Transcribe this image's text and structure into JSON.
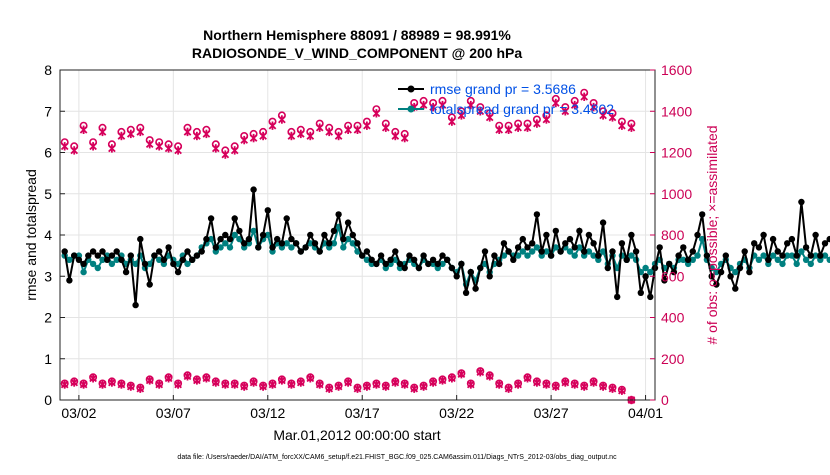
{
  "chart_data": {
    "type": "line",
    "title_line1": "Northern Hemisphere 88091 / 88989 = 98.991%",
    "title_line2": "RADIOSONDE_V_WIND_COMPONENT @ 200 hPa",
    "xlabel": "Mar.01,2012 00:00:00 start",
    "ylabel_left": "rmse and totalspread",
    "ylabel_right": "# of obs: o=possible; ×=assimilated",
    "footer": "data file: /Users/raeder/DAI/ATM_forcXX/CAM6_setup/f.e21.FHIST_BGC.f09_025.CAM6assim.011/Diags_NTrS_2012-03/obs_diag_output.nc",
    "x_range_days": [
      0,
      31.5
    ],
    "ylim_left": [
      0,
      8
    ],
    "ylim_right": [
      0,
      1600
    ],
    "x_ticks": [
      {
        "day": 1,
        "label": "03/02"
      },
      {
        "day": 6,
        "label": "03/07"
      },
      {
        "day": 11,
        "label": "03/12"
      },
      {
        "day": 16,
        "label": "03/17"
      },
      {
        "day": 21,
        "label": "03/22"
      },
      {
        "day": 26,
        "label": "03/27"
      },
      {
        "day": 31,
        "label": "04/01"
      }
    ],
    "y_ticks_left": [
      "0",
      "1",
      "2",
      "3",
      "4",
      "5",
      "6",
      "7",
      "8"
    ],
    "y_ticks_right": [
      "0",
      "200",
      "400",
      "600",
      "800",
      "1000",
      "1200",
      "1400",
      "1600"
    ],
    "legend": [
      {
        "name": "rmse grand pr = 3.5686",
        "color": "#000000"
      },
      {
        "name": "totalspread grand pr = 3.4802",
        "color": "#008080"
      }
    ],
    "colors": {
      "rmse": "#000000",
      "spread": "#008080",
      "obs": "#d6005b",
      "legend_text": "#0050e6",
      "right_axis": "#cc0055"
    },
    "step_days": 0.25,
    "series": [
      {
        "name": "rmse",
        "axis": "left",
        "values": [
          3.6,
          2.9,
          3.5,
          3.4,
          3.3,
          3.5,
          3.6,
          3.5,
          3.6,
          3.4,
          3.5,
          3.6,
          3.4,
          3.1,
          3.5,
          2.3,
          3.9,
          3.3,
          2.8,
          3.5,
          3.6,
          3.4,
          3.7,
          3.3,
          3.1,
          3.4,
          3.6,
          3.4,
          3.5,
          3.6,
          3.9,
          4.4,
          3.7,
          3.9,
          4.0,
          3.9,
          4.4,
          4.1,
          3.8,
          3.9,
          5.1,
          3.7,
          4.0,
          4.6,
          3.7,
          3.9,
          3.8,
          4.4,
          3.9,
          3.8,
          3.6,
          3.7,
          4.0,
          3.8,
          3.6,
          4.0,
          3.8,
          4.1,
          4.5,
          3.9,
          4.3,
          4.0,
          3.8,
          3.5,
          3.6,
          3.4,
          3.3,
          3.5,
          3.3,
          3.4,
          3.6,
          3.3,
          3.2,
          3.5,
          3.4,
          3.2,
          3.5,
          3.3,
          3.4,
          3.3,
          3.5,
          3.4,
          3.2,
          3.0,
          3.3,
          2.6,
          3.1,
          2.7,
          3.2,
          3.6,
          3.0,
          3.5,
          3.3,
          3.8,
          3.6,
          3.4,
          3.7,
          3.9,
          3.7,
          3.8,
          4.5,
          3.6,
          4.0,
          3.5,
          4.1,
          3.6,
          3.8,
          3.9,
          3.7,
          4.1,
          3.6,
          4.0,
          3.8,
          3.5,
          4.3,
          3.2,
          3.6,
          2.5,
          3.8,
          3.4,
          4.0,
          3.6,
          2.6,
          3.0,
          2.5,
          3.2,
          3.7,
          2.9,
          3.3,
          3.1,
          3.5,
          3.7,
          3.4,
          3.6,
          4.0,
          4.5,
          3.5,
          3.0,
          2.8,
          3.1,
          3.5,
          3.0,
          2.7,
          3.2,
          3.6,
          3.1,
          3.8,
          3.7,
          4.0,
          3.4,
          3.9,
          3.6,
          3.5,
          3.8,
          3.9,
          3.5,
          4.8,
          3.7,
          3.5,
          4.0,
          3.5,
          3.8,
          3.9
        ]
      },
      {
        "name": "totalspread",
        "axis": "left",
        "values": [
          3.5,
          3.4,
          3.5,
          3.5,
          3.1,
          3.4,
          3.3,
          3.2,
          3.4,
          3.5,
          3.3,
          3.4,
          3.5,
          3.3,
          3.4,
          3.3,
          3.5,
          3.2,
          3.3,
          3.5,
          3.4,
          3.3,
          3.5,
          3.4,
          3.3,
          3.5,
          3.3,
          3.4,
          3.5,
          3.7,
          3.8,
          3.9,
          3.6,
          3.7,
          3.8,
          3.7,
          4.0,
          3.9,
          3.7,
          3.8,
          4.1,
          3.7,
          3.9,
          4.0,
          3.6,
          3.8,
          3.7,
          3.8,
          3.7,
          3.8,
          3.6,
          3.7,
          3.8,
          3.7,
          3.6,
          3.8,
          3.7,
          3.8,
          4.2,
          3.7,
          3.9,
          3.8,
          3.6,
          3.5,
          3.4,
          3.3,
          3.3,
          3.4,
          3.2,
          3.3,
          3.4,
          3.2,
          3.3,
          3.4,
          3.3,
          3.2,
          3.4,
          3.3,
          3.3,
          3.2,
          3.3,
          3.4,
          3.2,
          3.1,
          3.3,
          2.8,
          3.1,
          2.9,
          3.2,
          3.3,
          3.1,
          3.3,
          3.4,
          3.5,
          3.6,
          3.5,
          3.5,
          3.6,
          3.5,
          3.6,
          3.7,
          3.5,
          3.6,
          3.5,
          3.7,
          3.6,
          3.7,
          3.6,
          3.5,
          3.7,
          3.5,
          3.6,
          3.5,
          3.4,
          3.6,
          3.3,
          3.5,
          3.2,
          3.5,
          3.4,
          3.5,
          3.4,
          3.1,
          3.2,
          3.1,
          3.3,
          3.4,
          3.2,
          3.3,
          3.2,
          3.4,
          3.4,
          3.3,
          3.4,
          3.5,
          3.9,
          3.4,
          3.2,
          3.1,
          3.3,
          3.4,
          3.2,
          3.1,
          3.3,
          3.4,
          3.2,
          3.5,
          3.4,
          3.5,
          3.3,
          3.5,
          3.4,
          3.3,
          3.5,
          3.5,
          3.3,
          3.6,
          3.4,
          3.3,
          3.5,
          3.4,
          3.5,
          3.4
        ]
      },
      {
        "name": "obs possible (upper)",
        "axis": "right",
        "step_days": 0.5,
        "values": [
          1250,
          1230,
          1330,
          1250,
          1320,
          1240,
          1300,
          1310,
          1320,
          1260,
          1250,
          1240,
          1230,
          1320,
          1300,
          1310,
          1240,
          1210,
          1230,
          1280,
          1290,
          1300,
          1350,
          1380,
          1300,
          1310,
          1300,
          1340,
          1320,
          1300,
          1330,
          1330,
          1350,
          1410,
          1340,
          1300,
          1290,
          1440,
          1450,
          1440,
          1450,
          1370,
          1400,
          1450,
          1420,
          1390,
          1330,
          1330,
          1340,
          1340,
          1360,
          1380,
          1460,
          1420,
          1450,
          1490,
          1440,
          1400,
          1390,
          1350,
          1340
        ]
      },
      {
        "name": "obs assimilated (upper)",
        "axis": "right",
        "step_days": 0.5,
        "values": [
          1230,
          1210,
          1310,
          1230,
          1300,
          1220,
          1280,
          1290,
          1300,
          1240,
          1230,
          1220,
          1210,
          1300,
          1280,
          1290,
          1220,
          1190,
          1210,
          1260,
          1270,
          1280,
          1330,
          1360,
          1280,
          1290,
          1280,
          1320,
          1300,
          1280,
          1310,
          1310,
          1330,
          1390,
          1320,
          1280,
          1270,
          1420,
          1430,
          1420,
          1430,
          1350,
          1380,
          1430,
          1400,
          1370,
          1310,
          1310,
          1320,
          1320,
          1340,
          1360,
          1440,
          1400,
          1430,
          1470,
          1420,
          1380,
          1370,
          1330,
          1320
        ]
      },
      {
        "name": "obs possible (lower)",
        "axis": "right",
        "step_days": 0.5,
        "values": [
          80,
          90,
          80,
          110,
          80,
          90,
          80,
          70,
          60,
          100,
          80,
          110,
          80,
          120,
          100,
          110,
          90,
          80,
          80,
          70,
          90,
          70,
          80,
          100,
          80,
          90,
          110,
          80,
          60,
          70,
          90,
          60,
          70,
          80,
          70,
          90,
          80,
          60,
          70,
          90,
          100,
          110,
          130,
          80,
          140,
          120,
          80,
          60,
          80,
          110,
          90,
          80,
          70,
          90,
          80,
          70,
          90,
          70,
          60,
          50,
          0
        ]
      },
      {
        "name": "obs assimilated (lower)",
        "axis": "right",
        "step_days": 0.5,
        "values": [
          75,
          85,
          75,
          105,
          75,
          85,
          75,
          65,
          55,
          95,
          75,
          105,
          75,
          115,
          95,
          105,
          85,
          75,
          75,
          65,
          85,
          65,
          75,
          95,
          75,
          85,
          105,
          75,
          55,
          65,
          85,
          55,
          65,
          75,
          65,
          85,
          75,
          55,
          65,
          85,
          95,
          105,
          125,
          75,
          135,
          115,
          75,
          55,
          75,
          105,
          85,
          75,
          65,
          85,
          75,
          65,
          85,
          65,
          55,
          45,
          0
        ]
      }
    ]
  }
}
